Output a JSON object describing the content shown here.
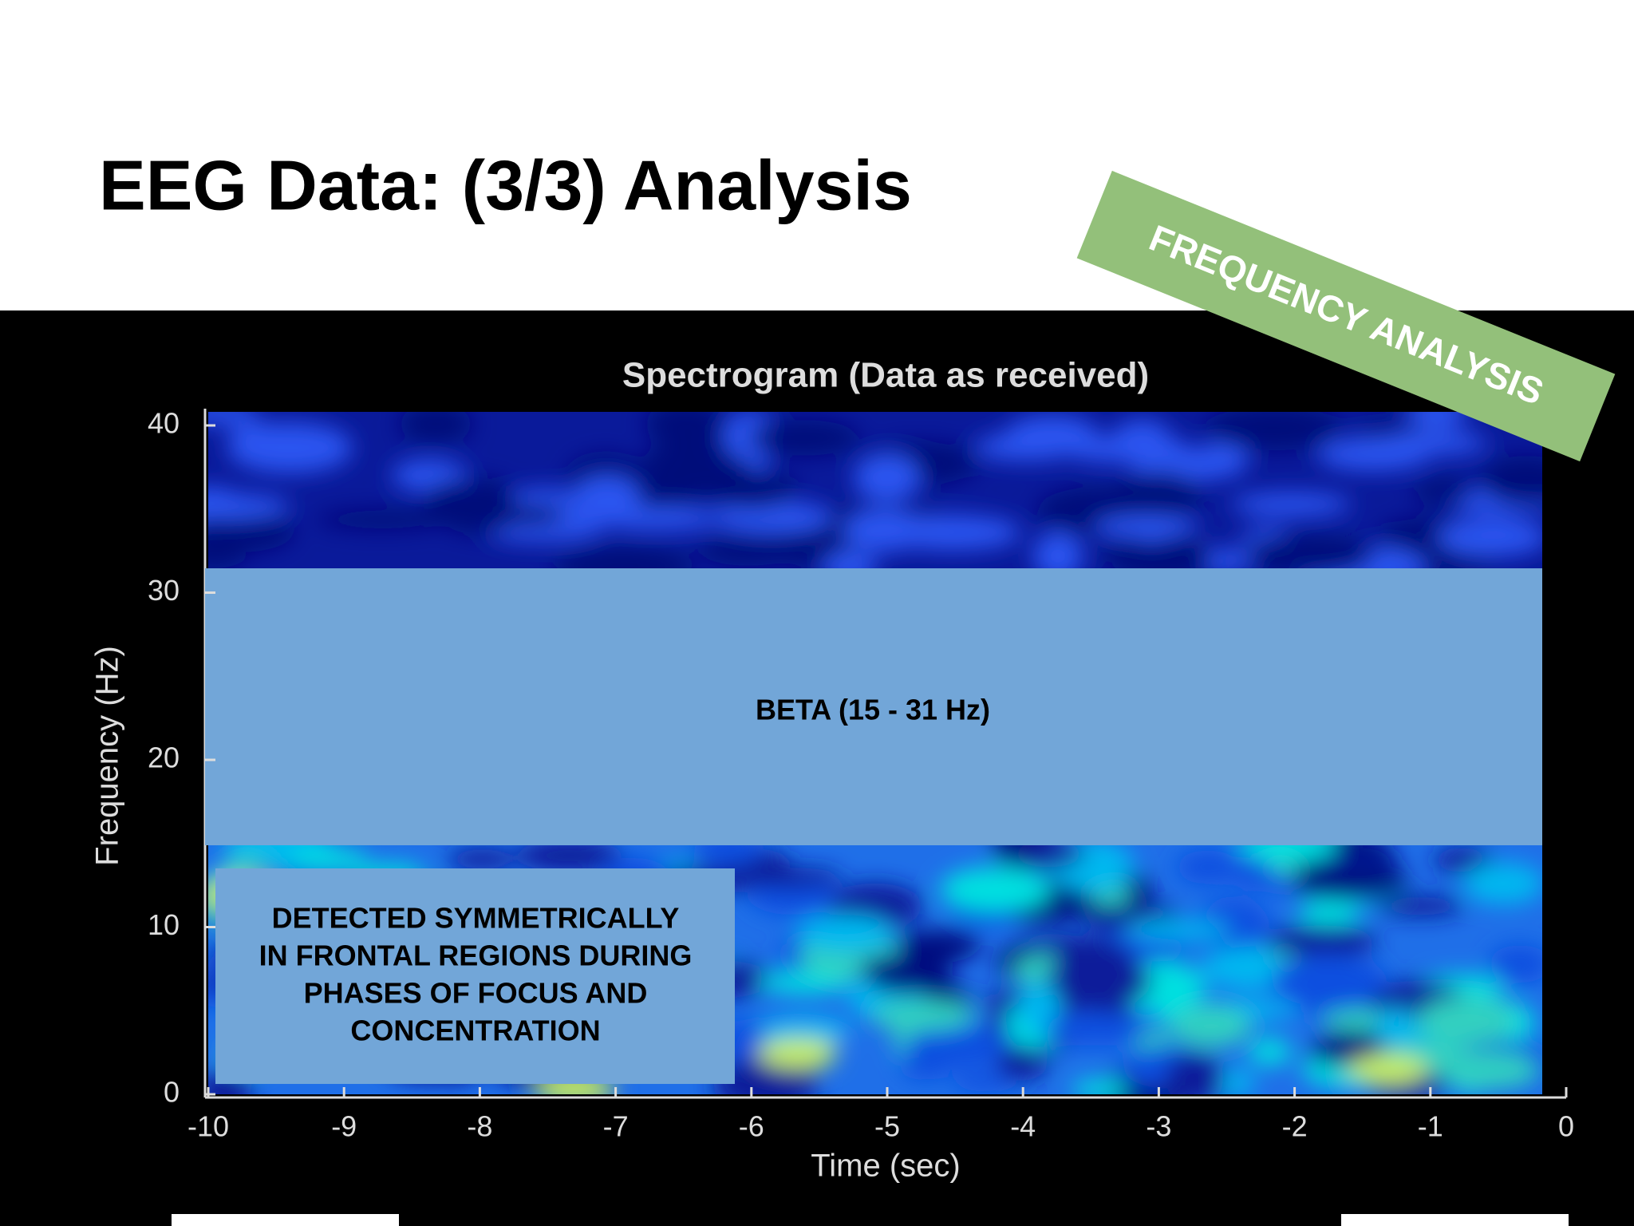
{
  "slide": {
    "title": "EEG Data: (3/3) Analysis",
    "banner": "FREQUENCY ANALYSIS",
    "spectrogram": {
      "title": "Spectrogram (Data as received)",
      "xlabel": "Time (sec)",
      "ylabel": "Frequency (Hz)",
      "xlim": [
        -10,
        0
      ],
      "ylim": [
        0,
        40
      ],
      "xticks": [
        -10,
        -9,
        -8,
        -7,
        -6,
        -5,
        -4,
        -3,
        -2,
        -1,
        0
      ],
      "yticks": [
        0,
        10,
        20,
        30,
        40
      ]
    },
    "band_label": "BETA (15 - 31 Hz)",
    "callout": [
      "DETECTED SYMMETRICALLY",
      "IN FRONTAL REGIONS DURING",
      "PHASES OF FOCUS AND",
      "CONCENTRATION"
    ]
  }
}
